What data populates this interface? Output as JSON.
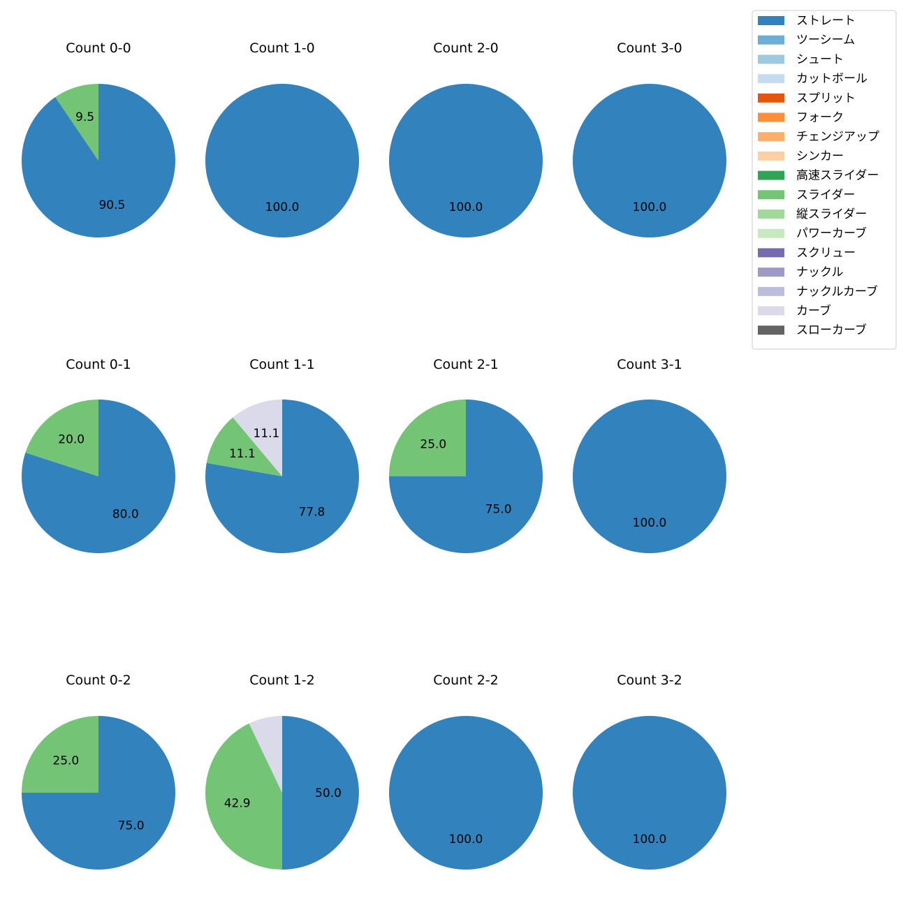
{
  "chart_data": {
    "type": "pie",
    "legend": {
      "placement": "top-right",
      "entries": [
        {
          "name": "ストレート",
          "color": "#3182bd"
        },
        {
          "name": "ツーシーム",
          "color": "#6baed6"
        },
        {
          "name": "シュート",
          "color": "#9ecae1"
        },
        {
          "name": "カットボール",
          "color": "#c6dbef"
        },
        {
          "name": "スプリット",
          "color": "#e6550d"
        },
        {
          "name": "フォーク",
          "color": "#fd8d3c"
        },
        {
          "name": "チェンジアップ",
          "color": "#fdae6b"
        },
        {
          "name": "シンカー",
          "color": "#fdd0a2"
        },
        {
          "name": "高速スライダー",
          "color": "#31a354"
        },
        {
          "name": "スライダー",
          "color": "#74c476"
        },
        {
          "name": "縦スライダー",
          "color": "#a1d99b"
        },
        {
          "name": "パワーカーブ",
          "color": "#c7e9c0"
        },
        {
          "name": "スクリュー",
          "color": "#756bb1"
        },
        {
          "name": "ナックル",
          "color": "#9e9ac8"
        },
        {
          "name": "ナックルカーブ",
          "color": "#bcbddc"
        },
        {
          "name": "カーブ",
          "color": "#dadaeb"
        },
        {
          "name": "スローカーブ",
          "color": "#636363"
        }
      ]
    },
    "pies": [
      {
        "title": "Count 0-0",
        "slices": [
          {
            "pitch": "ストレート",
            "value": 90.5,
            "label": "90.5"
          },
          {
            "pitch": "スライダー",
            "value": 9.5,
            "label": "9.5"
          }
        ]
      },
      {
        "title": "Count 1-0",
        "slices": [
          {
            "pitch": "ストレート",
            "value": 100.0,
            "label": "100.0"
          }
        ]
      },
      {
        "title": "Count 2-0",
        "slices": [
          {
            "pitch": "ストレート",
            "value": 100.0,
            "label": "100.0"
          }
        ]
      },
      {
        "title": "Count 3-0",
        "slices": [
          {
            "pitch": "ストレート",
            "value": 100.0,
            "label": "100.0"
          }
        ]
      },
      {
        "title": "Count 0-1",
        "slices": [
          {
            "pitch": "ストレート",
            "value": 80.0,
            "label": "80.0"
          },
          {
            "pitch": "スライダー",
            "value": 20.0,
            "label": "20.0"
          }
        ]
      },
      {
        "title": "Count 1-1",
        "slices": [
          {
            "pitch": "ストレート",
            "value": 77.8,
            "label": "77.8"
          },
          {
            "pitch": "スライダー",
            "value": 11.1,
            "label": "11.1"
          },
          {
            "pitch": "カーブ",
            "value": 11.1,
            "label": "11.1"
          }
        ]
      },
      {
        "title": "Count 2-1",
        "slices": [
          {
            "pitch": "ストレート",
            "value": 75.0,
            "label": "75.0"
          },
          {
            "pitch": "スライダー",
            "value": 25.0,
            "label": "25.0"
          }
        ]
      },
      {
        "title": "Count 3-1",
        "slices": [
          {
            "pitch": "ストレート",
            "value": 100.0,
            "label": "100.0"
          }
        ]
      },
      {
        "title": "Count 0-2",
        "slices": [
          {
            "pitch": "ストレート",
            "value": 75.0,
            "label": "75.0"
          },
          {
            "pitch": "スライダー",
            "value": 25.0,
            "label": "25.0"
          }
        ]
      },
      {
        "title": "Count 1-2",
        "slices": [
          {
            "pitch": "ストレート",
            "value": 50.0,
            "label": "50.0"
          },
          {
            "pitch": "スライダー",
            "value": 42.9,
            "label": "42.9"
          },
          {
            "pitch": "カーブ",
            "value": 7.1,
            "label": ""
          }
        ]
      },
      {
        "title": "Count 2-2",
        "slices": [
          {
            "pitch": "ストレート",
            "value": 100.0,
            "label": "100.0"
          }
        ]
      },
      {
        "title": "Count 3-2",
        "slices": [
          {
            "pitch": "ストレート",
            "value": 100.0,
            "label": "100.0"
          }
        ]
      }
    ]
  }
}
